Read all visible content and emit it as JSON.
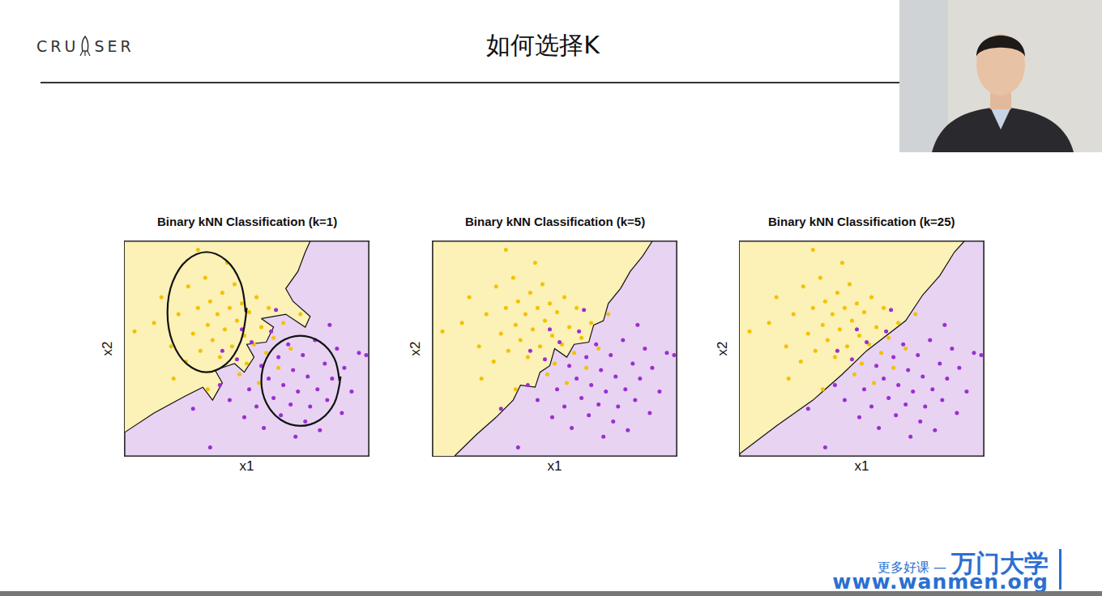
{
  "slide": {
    "logo": [
      "CRU",
      "SER"
    ],
    "title": "如何选择K",
    "watermark": {
      "tagline": "更多好课 —",
      "brand": "万门大学",
      "url": "www.wanmen.org"
    }
  },
  "chart_data": [
    {
      "type": "scatter",
      "title": "Binary kNN Classification (k=1)",
      "x_label": "x1",
      "y_label": "x2",
      "xlim": [
        0,
        10
      ],
      "ylim": [
        0,
        10
      ],
      "tick_labels": false,
      "grid": false,
      "series": [
        {
          "type": "area",
          "color": "#e8d3f3",
          "x": [
            0,
            0,
            10,
            10,
            0
          ],
          "values": [
            0,
            10,
            10,
            0,
            0
          ]
        },
        {
          "type": "area",
          "color": "#fcf1b6",
          "x": [
            0,
            1.2,
            2.5,
            3.2,
            3.6,
            4.0,
            3.7,
            4.5,
            4.9,
            5.3,
            5.0,
            5.8,
            6.1,
            5.6,
            6.6,
            7.4,
            7.6,
            6.9,
            6.6,
            7.1,
            7.4,
            7.6,
            0
          ],
          "values": [
            1.1,
            2.0,
            2.8,
            3.2,
            2.6,
            3.4,
            4.0,
            4.3,
            3.9,
            4.6,
            5.2,
            5.3,
            6.0,
            6.4,
            6.6,
            6.0,
            6.5,
            7.2,
            7.8,
            8.6,
            9.5,
            10,
            10
          ]
        },
        {
          "type": "scatter",
          "marker": "circle",
          "color": "#f2c200",
          "x": [
            0.4,
            1.5,
            1.9,
            2.2,
            2.5,
            2.6,
            2.8,
            3.0,
            3.1,
            3.3,
            3.4,
            3.5,
            3.6,
            3.8,
            3.9,
            4.0,
            4.1,
            4.3,
            4.4,
            4.5,
            4.6,
            4.8,
            4.9,
            5.0,
            5.1,
            5.3,
            5.4,
            5.6,
            5.8,
            5.9,
            6.1,
            6.3,
            6.5,
            2.0,
            3.4,
            4.7,
            5.5,
            6.8,
            3.0,
            7.2,
            1.2,
            4.2
          ],
          "values": [
            5.8,
            7.4,
            5.1,
            6.6,
            4.4,
            7.9,
            5.7,
            6.9,
            4.9,
            8.3,
            6.1,
            7.2,
            5.4,
            6.6,
            4.6,
            7.6,
            5.9,
            6.9,
            5.1,
            8.0,
            6.3,
            7.1,
            5.6,
            4.3,
            6.7,
            5.2,
            7.4,
            6.0,
            4.8,
            6.9,
            5.5,
            4.1,
            6.2,
            3.6,
            3.1,
            3.8,
            3.4,
            5.0,
            9.6,
            6.6,
            6.2,
            9.0
          ]
        },
        {
          "type": "scatter",
          "marker": "circle",
          "color": "#9a2fd0",
          "x": [
            3.9,
            4.3,
            4.6,
            4.9,
            5.1,
            5.2,
            5.4,
            5.6,
            5.7,
            5.9,
            6.0,
            6.1,
            6.3,
            6.4,
            6.5,
            6.7,
            6.8,
            6.9,
            7.0,
            7.1,
            7.3,
            7.4,
            7.5,
            7.6,
            7.8,
            7.9,
            8.0,
            8.2,
            8.3,
            8.5,
            8.7,
            8.9,
            9.0,
            9.3,
            9.6,
            2.8,
            4.0,
            4.8,
            3.5,
            9.9,
            6.2,
            8.4
          ],
          "values": [
            3.3,
            2.6,
            4.5,
            1.8,
            3.1,
            5.3,
            2.3,
            4.2,
            1.3,
            3.6,
            5.8,
            2.7,
            4.6,
            1.9,
            3.3,
            5.2,
            2.4,
            4.0,
            0.9,
            3.0,
            4.7,
            1.6,
            3.7,
            2.3,
            5.4,
            3.1,
            1.2,
            4.3,
            2.6,
            3.6,
            5.0,
            2.0,
            4.1,
            3.0,
            4.8,
            2.2,
            4.9,
            5.9,
            0.4,
            4.7,
            6.8,
            6.1
          ]
        },
        {
          "type": "line",
          "line_style": "solid",
          "color": "#111111",
          "x": [
            4.95,
            4.74,
            4.15,
            3.35,
            2.55,
            1.96,
            1.75,
            1.96,
            2.55,
            3.35,
            4.15,
            4.74,
            5.0
          ],
          "values": [
            6.7,
            8.1,
            9.12,
            9.5,
            9.12,
            8.1,
            6.7,
            5.3,
            4.28,
            3.9,
            4.28,
            5.3,
            6.9
          ]
        },
        {
          "type": "line",
          "line_style": "solid",
          "color": "#111111",
          "x": [
            8.8,
            8.59,
            8.0,
            7.2,
            6.4,
            5.81,
            5.6,
            5.81,
            6.4,
            7.2,
            8.0,
            8.59,
            8.85
          ],
          "values": [
            3.5,
            4.55,
            5.32,
            5.6,
            5.32,
            4.55,
            3.5,
            2.45,
            1.68,
            1.4,
            1.68,
            2.45,
            3.7
          ]
        }
      ]
    },
    {
      "type": "scatter",
      "title": "Binary kNN Classification (k=5)",
      "x_label": "x1",
      "y_label": "x2",
      "xlim": [
        0,
        10
      ],
      "ylim": [
        0,
        10
      ],
      "tick_labels": false,
      "grid": false,
      "series": [
        {
          "type": "area",
          "color": "#e8d3f3",
          "x": [
            0,
            0,
            10,
            10,
            0
          ],
          "values": [
            0,
            10,
            10,
            0,
            0
          ]
        },
        {
          "type": "area",
          "color": "#fcf1b6",
          "x": [
            0.9,
            1.8,
            2.6,
            3.3,
            3.6,
            4.2,
            4.4,
            4.8,
            5.0,
            5.5,
            5.8,
            6.4,
            6.6,
            7.0,
            7.2,
            7.7,
            8.1,
            8.6,
            9.0,
            0,
            0
          ],
          "values": [
            0,
            1.0,
            1.8,
            2.6,
            3.3,
            3.2,
            3.9,
            4.2,
            5.0,
            4.6,
            5.2,
            5.3,
            6.1,
            6.3,
            7.1,
            7.8,
            8.6,
            9.3,
            10,
            10,
            0
          ]
        },
        {
          "type": "scatter",
          "marker": "circle",
          "color": "#f2c200",
          "x": [
            0.4,
            1.5,
            1.9,
            2.2,
            2.5,
            2.6,
            2.8,
            3.0,
            3.1,
            3.3,
            3.4,
            3.5,
            3.6,
            3.8,
            3.9,
            4.0,
            4.1,
            4.3,
            4.4,
            4.5,
            4.6,
            4.8,
            4.9,
            5.0,
            5.1,
            5.3,
            5.4,
            5.6,
            5.8,
            5.9,
            6.1,
            6.3,
            6.5,
            2.0,
            3.4,
            4.7,
            5.5,
            6.8,
            3.0,
            7.2,
            1.2,
            4.2
          ],
          "values": [
            5.8,
            7.4,
            5.1,
            6.6,
            4.4,
            7.9,
            5.7,
            6.9,
            4.9,
            8.3,
            6.1,
            7.2,
            5.4,
            6.6,
            4.6,
            7.6,
            5.9,
            6.9,
            5.1,
            8.0,
            6.3,
            7.1,
            5.6,
            4.3,
            6.7,
            5.2,
            7.4,
            6.0,
            4.8,
            6.9,
            5.5,
            4.1,
            6.2,
            3.6,
            3.1,
            3.8,
            3.4,
            5.0,
            9.6,
            6.6,
            6.2,
            9.0
          ]
        },
        {
          "type": "scatter",
          "marker": "circle",
          "color": "#9a2fd0",
          "x": [
            3.9,
            4.3,
            4.6,
            4.9,
            5.1,
            5.2,
            5.4,
            5.6,
            5.7,
            5.9,
            6.0,
            6.1,
            6.3,
            6.4,
            6.5,
            6.7,
            6.8,
            6.9,
            7.0,
            7.1,
            7.3,
            7.4,
            7.5,
            7.6,
            7.8,
            7.9,
            8.0,
            8.2,
            8.3,
            8.5,
            8.7,
            8.9,
            9.0,
            9.3,
            9.6,
            2.8,
            4.0,
            4.8,
            3.5,
            9.9,
            6.2,
            8.4
          ],
          "values": [
            3.3,
            2.6,
            4.5,
            1.8,
            3.1,
            5.3,
            2.3,
            4.2,
            1.3,
            3.6,
            5.8,
            2.7,
            4.6,
            1.9,
            3.3,
            5.2,
            2.4,
            4.0,
            0.9,
            3.0,
            4.7,
            1.6,
            3.7,
            2.3,
            5.4,
            3.1,
            1.2,
            4.3,
            2.6,
            3.6,
            5.0,
            2.0,
            4.1,
            3.0,
            4.8,
            2.2,
            4.9,
            5.9,
            0.4,
            4.7,
            6.8,
            6.1
          ]
        }
      ]
    },
    {
      "type": "scatter",
      "title": "Binary kNN Classification (k=25)",
      "x_label": "x1",
      "y_label": "x2",
      "xlim": [
        0,
        10
      ],
      "ylim": [
        0,
        10
      ],
      "tick_labels": false,
      "grid": false,
      "series": [
        {
          "type": "area",
          "color": "#e8d3f3",
          "x": [
            0,
            0,
            10,
            10,
            0
          ],
          "values": [
            0,
            10,
            10,
            0,
            0
          ]
        },
        {
          "type": "area",
          "color": "#fcf1b6",
          "x": [
            0,
            1.5,
            3.0,
            4.2,
            5.2,
            6.0,
            6.8,
            7.5,
            8.2,
            8.8,
            9.2,
            0
          ],
          "values": [
            0.1,
            1.4,
            2.6,
            3.8,
            4.9,
            5.6,
            6.3,
            7.5,
            8.4,
            9.5,
            10,
            10
          ]
        },
        {
          "type": "scatter",
          "marker": "circle",
          "color": "#f2c200",
          "x": [
            0.4,
            1.5,
            1.9,
            2.2,
            2.5,
            2.6,
            2.8,
            3.0,
            3.1,
            3.3,
            3.4,
            3.5,
            3.6,
            3.8,
            3.9,
            4.0,
            4.1,
            4.3,
            4.4,
            4.5,
            4.6,
            4.8,
            4.9,
            5.0,
            5.1,
            5.3,
            5.4,
            5.6,
            5.8,
            5.9,
            6.1,
            6.3,
            6.5,
            2.0,
            3.4,
            4.7,
            5.5,
            6.8,
            3.0,
            7.2,
            1.2,
            4.2
          ],
          "values": [
            5.8,
            7.4,
            5.1,
            6.6,
            4.4,
            7.9,
            5.7,
            6.9,
            4.9,
            8.3,
            6.1,
            7.2,
            5.4,
            6.6,
            4.6,
            7.6,
            5.9,
            6.9,
            5.1,
            8.0,
            6.3,
            7.1,
            5.6,
            4.3,
            6.7,
            5.2,
            7.4,
            6.0,
            4.8,
            6.9,
            5.5,
            4.1,
            6.2,
            3.6,
            3.1,
            3.8,
            3.4,
            5.0,
            9.6,
            6.6,
            6.2,
            9.0
          ]
        },
        {
          "type": "scatter",
          "marker": "circle",
          "color": "#9a2fd0",
          "x": [
            3.9,
            4.3,
            4.6,
            4.9,
            5.1,
            5.2,
            5.4,
            5.6,
            5.7,
            5.9,
            6.0,
            6.1,
            6.3,
            6.4,
            6.5,
            6.7,
            6.8,
            6.9,
            7.0,
            7.1,
            7.3,
            7.4,
            7.5,
            7.6,
            7.8,
            7.9,
            8.0,
            8.2,
            8.3,
            8.5,
            8.7,
            8.9,
            9.0,
            9.3,
            9.6,
            2.8,
            4.0,
            4.8,
            3.5,
            9.9,
            6.2,
            8.4
          ],
          "values": [
            3.3,
            2.6,
            4.5,
            1.8,
            3.1,
            5.3,
            2.3,
            4.2,
            1.3,
            3.6,
            5.8,
            2.7,
            4.6,
            1.9,
            3.3,
            5.2,
            2.4,
            4.0,
            0.9,
            3.0,
            4.7,
            1.6,
            3.7,
            2.3,
            5.4,
            3.1,
            1.2,
            4.3,
            2.6,
            3.6,
            5.0,
            2.0,
            4.1,
            3.0,
            4.8,
            2.2,
            4.9,
            5.9,
            0.4,
            4.7,
            6.8,
            6.1
          ]
        }
      ]
    }
  ]
}
